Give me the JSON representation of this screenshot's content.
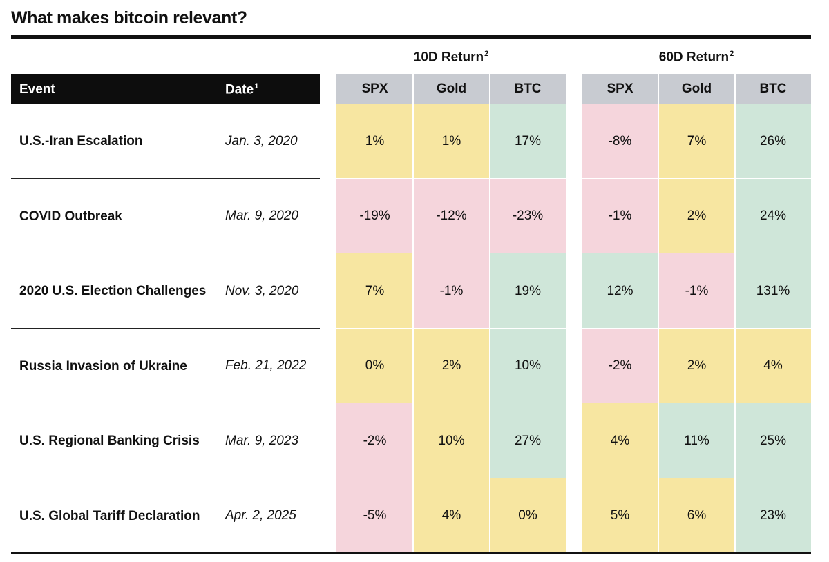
{
  "title": "What makes bitcoin relevant?",
  "group_headers": {
    "ret10": {
      "label": "10D Return",
      "sup": "2"
    },
    "ret60": {
      "label": "60D Return",
      "sup": "2"
    }
  },
  "columns": {
    "event": "Event",
    "date": "Date",
    "date_sup": "1",
    "spx": "SPX",
    "gold": "Gold",
    "btc": "BTC"
  },
  "colors": {
    "positive_green": "#cfe6d9",
    "neutral_yellow": "#f7e6a1",
    "negative_pink": "#f5d5dc",
    "header_grey": "#c8cbd1",
    "header_black": "#0d0d0d"
  },
  "rows": [
    {
      "event": "U.S.-Iran Escalation",
      "date": "Jan. 3, 2020",
      "cells": [
        {
          "v": "1%",
          "c": "yellow"
        },
        {
          "v": "1%",
          "c": "yellow"
        },
        {
          "v": "17%",
          "c": "green"
        },
        {
          "v": "-8%",
          "c": "pink"
        },
        {
          "v": "7%",
          "c": "yellow"
        },
        {
          "v": "26%",
          "c": "green"
        }
      ]
    },
    {
      "event": "COVID Outbreak",
      "date": "Mar. 9, 2020",
      "cells": [
        {
          "v": "-19%",
          "c": "pink"
        },
        {
          "v": "-12%",
          "c": "pink"
        },
        {
          "v": "-23%",
          "c": "pink"
        },
        {
          "v": "-1%",
          "c": "pink"
        },
        {
          "v": "2%",
          "c": "yellow"
        },
        {
          "v": "24%",
          "c": "green"
        }
      ]
    },
    {
      "event": "2020 U.S. Election Challenges",
      "date": "Nov. 3, 2020",
      "cells": [
        {
          "v": "7%",
          "c": "yellow"
        },
        {
          "v": "-1%",
          "c": "pink"
        },
        {
          "v": "19%",
          "c": "green"
        },
        {
          "v": "12%",
          "c": "green"
        },
        {
          "v": "-1%",
          "c": "pink"
        },
        {
          "v": "131%",
          "c": "green"
        }
      ]
    },
    {
      "event": "Russia Invasion of Ukraine",
      "date": "Feb. 21, 2022",
      "cells": [
        {
          "v": "0%",
          "c": "yellow"
        },
        {
          "v": "2%",
          "c": "yellow"
        },
        {
          "v": "10%",
          "c": "green"
        },
        {
          "v": "-2%",
          "c": "pink"
        },
        {
          "v": "2%",
          "c": "yellow"
        },
        {
          "v": "4%",
          "c": "yellow"
        }
      ]
    },
    {
      "event": "U.S. Regional Banking Crisis",
      "date": "Mar. 9, 2023",
      "cells": [
        {
          "v": "-2%",
          "c": "pink"
        },
        {
          "v": "10%",
          "c": "yellow"
        },
        {
          "v": "27%",
          "c": "green"
        },
        {
          "v": "4%",
          "c": "yellow"
        },
        {
          "v": "11%",
          "c": "green"
        },
        {
          "v": "25%",
          "c": "green"
        }
      ]
    },
    {
      "event": "U.S. Global Tariff Declaration",
      "date": "Apr. 2, 2025",
      "cells": [
        {
          "v": "-5%",
          "c": "pink"
        },
        {
          "v": "4%",
          "c": "yellow"
        },
        {
          "v": "0%",
          "c": "yellow"
        },
        {
          "v": "5%",
          "c": "yellow"
        },
        {
          "v": "6%",
          "c": "yellow"
        },
        {
          "v": "23%",
          "c": "green"
        }
      ]
    }
  ]
}
